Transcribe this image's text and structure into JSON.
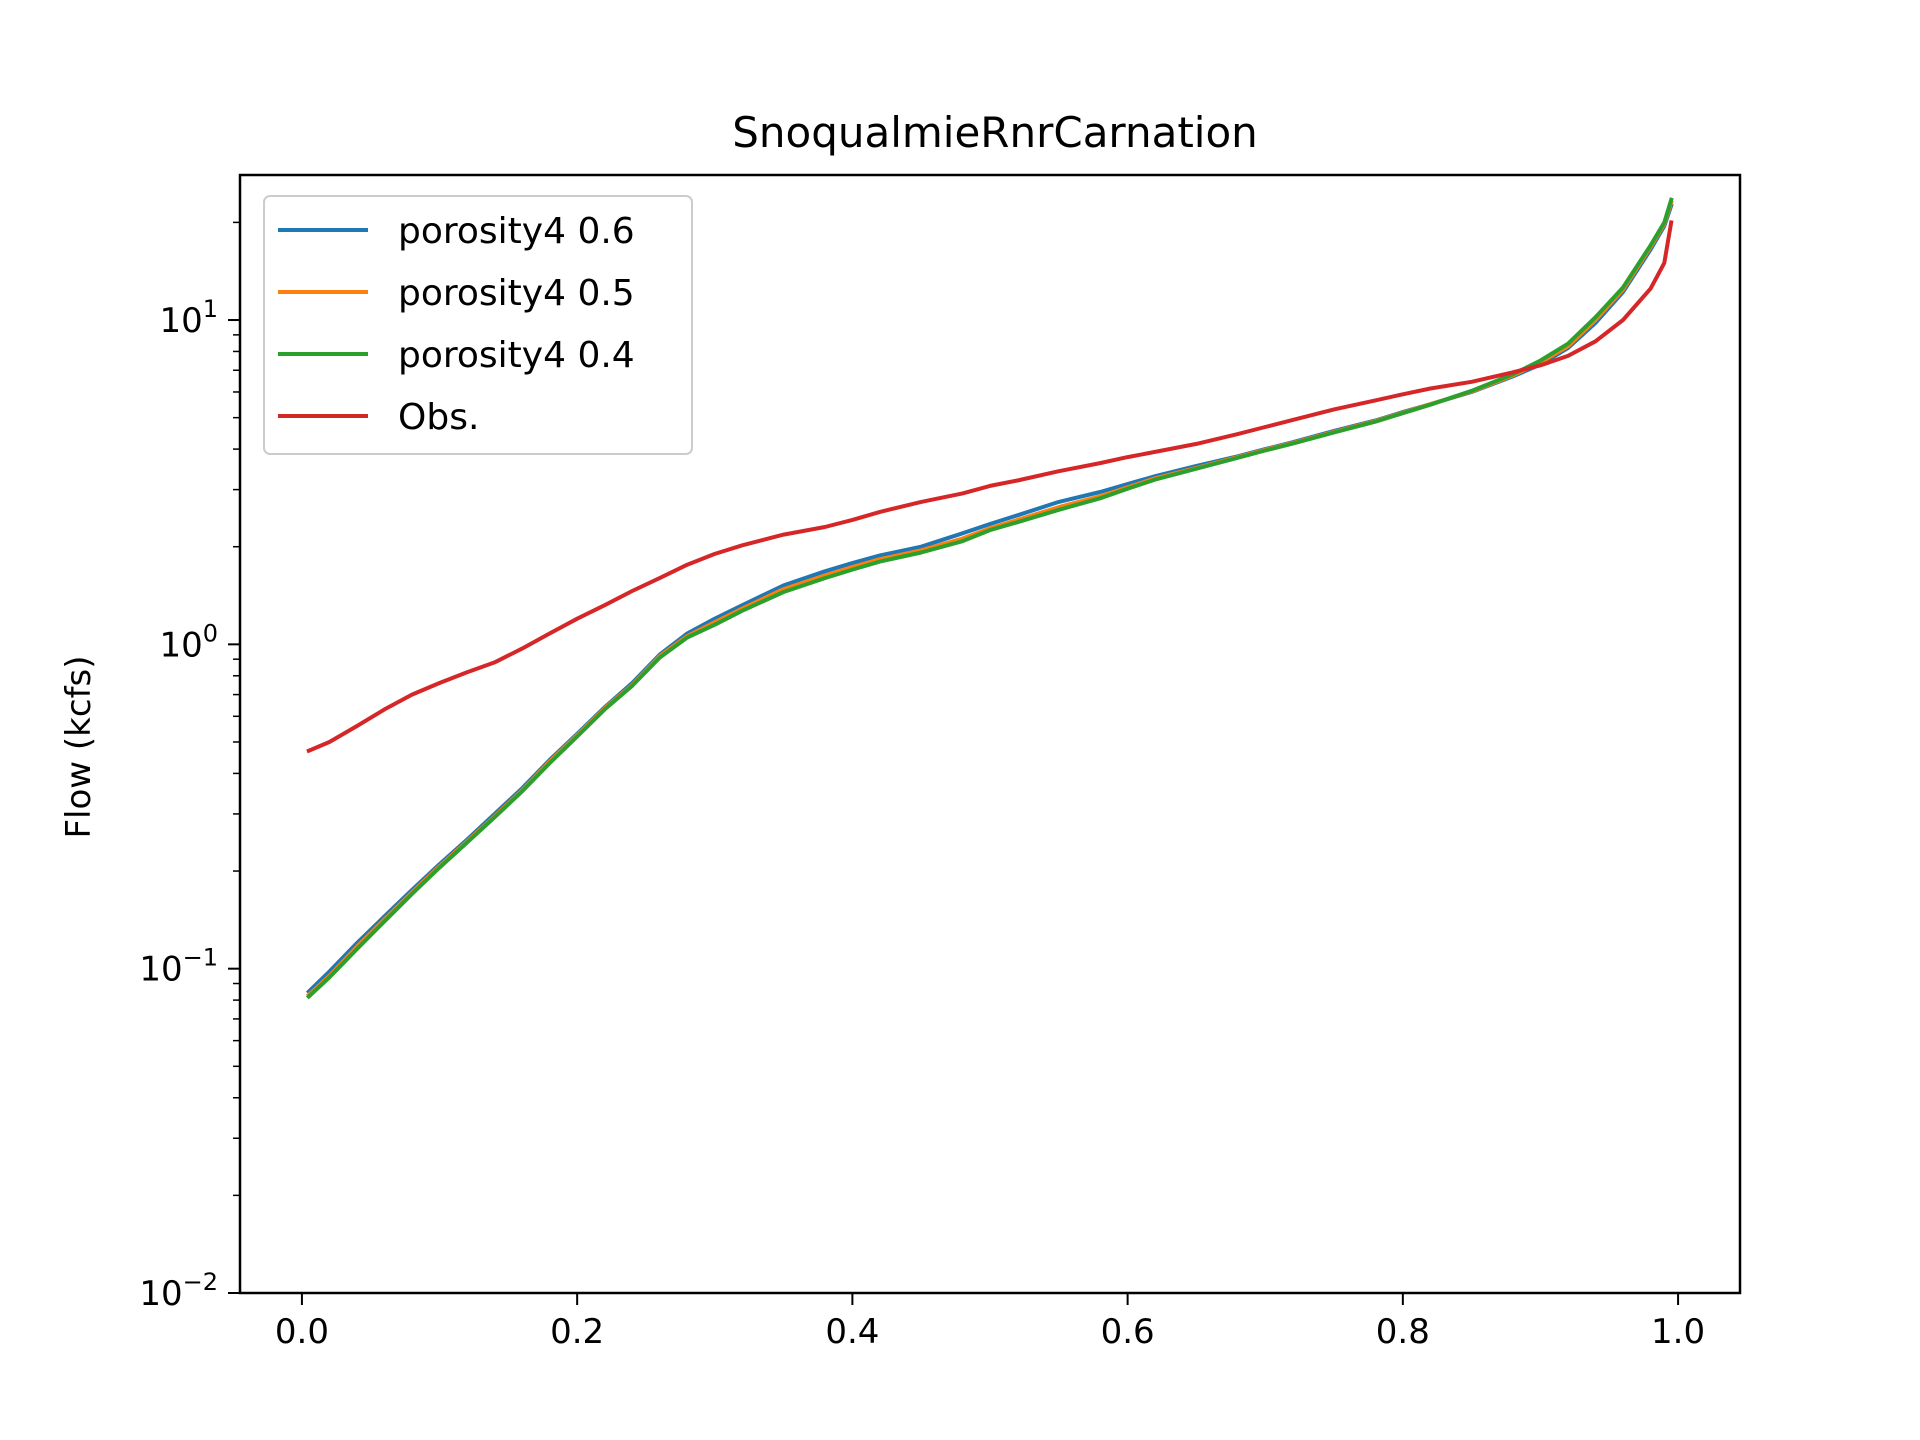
{
  "chart_data": {
    "type": "line",
    "title": "SnoqualmieRnrCarnation",
    "xlabel": "",
    "ylabel": "Flow (kcfs)",
    "yscale": "log",
    "xlim": [
      -0.045,
      1.045
    ],
    "ylim": [
      0.01,
      28
    ],
    "grid": false,
    "legend_position": "upper-left",
    "xticks": [
      {
        "value": 0.0,
        "label": "0.0"
      },
      {
        "value": 0.2,
        "label": "0.2"
      },
      {
        "value": 0.4,
        "label": "0.4"
      },
      {
        "value": 0.6,
        "label": "0.6"
      },
      {
        "value": 0.8,
        "label": "0.8"
      },
      {
        "value": 1.0,
        "label": "1.0"
      }
    ],
    "yticks": [
      {
        "value": 0.01,
        "base": "10",
        "exp": "−2"
      },
      {
        "value": 0.1,
        "base": "10",
        "exp": "−1"
      },
      {
        "value": 1,
        "base": "10",
        "exp": "0"
      },
      {
        "value": 10,
        "base": "10",
        "exp": "1"
      }
    ],
    "series": [
      {
        "name": "porosity4 0.6",
        "color": "#1f77b4",
        "x": [
          0.005,
          0.02,
          0.04,
          0.06,
          0.08,
          0.1,
          0.12,
          0.14,
          0.16,
          0.18,
          0.2,
          0.22,
          0.24,
          0.26,
          0.28,
          0.3,
          0.32,
          0.35,
          0.38,
          0.4,
          0.42,
          0.45,
          0.48,
          0.5,
          0.52,
          0.55,
          0.58,
          0.6,
          0.62,
          0.65,
          0.68,
          0.7,
          0.72,
          0.75,
          0.78,
          0.8,
          0.82,
          0.85,
          0.88,
          0.9,
          0.92,
          0.94,
          0.96,
          0.98,
          0.99,
          0.995
        ],
        "y": [
          0.085,
          0.098,
          0.12,
          0.145,
          0.175,
          0.21,
          0.25,
          0.3,
          0.36,
          0.44,
          0.53,
          0.64,
          0.76,
          0.93,
          1.08,
          1.2,
          1.32,
          1.52,
          1.68,
          1.78,
          1.88,
          2.0,
          2.2,
          2.35,
          2.5,
          2.75,
          2.95,
          3.12,
          3.3,
          3.55,
          3.8,
          4.0,
          4.2,
          4.55,
          4.9,
          5.2,
          5.5,
          6.0,
          6.7,
          7.3,
          8.2,
          9.8,
          12.2,
          16.5,
          19.5,
          22.5
        ]
      },
      {
        "name": "porosity4 0.5",
        "color": "#ff7f0e",
        "x": [
          0.005,
          0.02,
          0.04,
          0.06,
          0.08,
          0.1,
          0.12,
          0.14,
          0.16,
          0.18,
          0.2,
          0.22,
          0.24,
          0.26,
          0.28,
          0.3,
          0.32,
          0.35,
          0.38,
          0.4,
          0.42,
          0.45,
          0.48,
          0.5,
          0.52,
          0.55,
          0.58,
          0.6,
          0.62,
          0.65,
          0.68,
          0.7,
          0.72,
          0.75,
          0.78,
          0.8,
          0.82,
          0.85,
          0.88,
          0.9,
          0.92,
          0.94,
          0.96,
          0.98,
          0.99,
          0.995
        ],
        "y": [
          0.083,
          0.095,
          0.117,
          0.142,
          0.172,
          0.207,
          0.247,
          0.295,
          0.355,
          0.435,
          0.525,
          0.635,
          0.75,
          0.92,
          1.06,
          1.17,
          1.29,
          1.48,
          1.63,
          1.73,
          1.83,
          1.95,
          2.12,
          2.28,
          2.42,
          2.65,
          2.86,
          3.05,
          3.25,
          3.5,
          3.78,
          3.98,
          4.18,
          4.52,
          4.88,
          5.18,
          5.5,
          6.02,
          6.75,
          7.4,
          8.3,
          10.0,
          12.4,
          16.8,
          19.8,
          23.0
        ]
      },
      {
        "name": "porosity4 0.4",
        "color": "#2ca02c",
        "x": [
          0.005,
          0.02,
          0.04,
          0.06,
          0.08,
          0.1,
          0.12,
          0.14,
          0.16,
          0.18,
          0.2,
          0.22,
          0.24,
          0.26,
          0.28,
          0.3,
          0.32,
          0.35,
          0.38,
          0.4,
          0.42,
          0.45,
          0.48,
          0.5,
          0.52,
          0.55,
          0.58,
          0.6,
          0.62,
          0.65,
          0.68,
          0.7,
          0.72,
          0.75,
          0.78,
          0.8,
          0.82,
          0.85,
          0.88,
          0.9,
          0.92,
          0.94,
          0.96,
          0.98,
          0.99,
          0.995
        ],
        "y": [
          0.082,
          0.094,
          0.115,
          0.14,
          0.17,
          0.205,
          0.245,
          0.293,
          0.352,
          0.43,
          0.52,
          0.63,
          0.745,
          0.91,
          1.05,
          1.15,
          1.27,
          1.45,
          1.6,
          1.7,
          1.8,
          1.92,
          2.08,
          2.25,
          2.38,
          2.6,
          2.82,
          3.02,
          3.22,
          3.48,
          3.76,
          3.96,
          4.16,
          4.5,
          4.86,
          5.16,
          5.48,
          6.05,
          6.8,
          7.5,
          8.45,
          10.2,
          12.6,
          17.0,
          20.0,
          23.5
        ]
      },
      {
        "name": "Obs.",
        "color": "#d62728",
        "x": [
          0.005,
          0.02,
          0.04,
          0.06,
          0.08,
          0.1,
          0.12,
          0.14,
          0.16,
          0.18,
          0.2,
          0.22,
          0.24,
          0.26,
          0.28,
          0.3,
          0.32,
          0.35,
          0.38,
          0.4,
          0.42,
          0.45,
          0.48,
          0.5,
          0.52,
          0.55,
          0.58,
          0.6,
          0.62,
          0.65,
          0.68,
          0.7,
          0.72,
          0.75,
          0.78,
          0.8,
          0.82,
          0.85,
          0.88,
          0.9,
          0.92,
          0.94,
          0.96,
          0.98,
          0.99,
          0.995
        ],
        "y": [
          0.47,
          0.5,
          0.56,
          0.63,
          0.7,
          0.76,
          0.82,
          0.88,
          0.97,
          1.08,
          1.2,
          1.32,
          1.46,
          1.6,
          1.76,
          1.9,
          2.02,
          2.18,
          2.3,
          2.42,
          2.56,
          2.75,
          2.92,
          3.08,
          3.2,
          3.42,
          3.62,
          3.78,
          3.92,
          4.15,
          4.45,
          4.68,
          4.92,
          5.3,
          5.65,
          5.9,
          6.15,
          6.45,
          6.9,
          7.25,
          7.75,
          8.6,
          10.0,
          12.5,
          15.0,
          20.0
        ]
      }
    ]
  }
}
